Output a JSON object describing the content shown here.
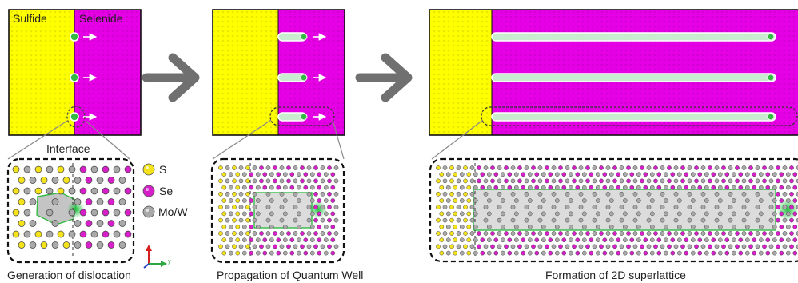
{
  "panel1": {
    "sulfide_label": "Sulfide",
    "selenide_label": "Selenide",
    "interface_label": "Interface",
    "caption": "Generation of dislocation"
  },
  "panel2": {
    "caption": "Propagation of Quantum Well"
  },
  "panel3": {
    "caption": "Formation of 2D superlattice"
  },
  "legend": {
    "items": [
      {
        "label": "S",
        "color": "#f4e21a"
      },
      {
        "label": "Se",
        "color": "#d61fc9"
      },
      {
        "label": "Mo/W",
        "color": "#a9a9a9"
      }
    ]
  },
  "axes": {
    "x_label": "x",
    "y_label": "y"
  },
  "colors": {
    "sulfide": "#ffff00",
    "selenide": "#e600e6",
    "well": "#c9ecd0",
    "dot": "#33bb44",
    "arrow_gray": "#707070"
  }
}
